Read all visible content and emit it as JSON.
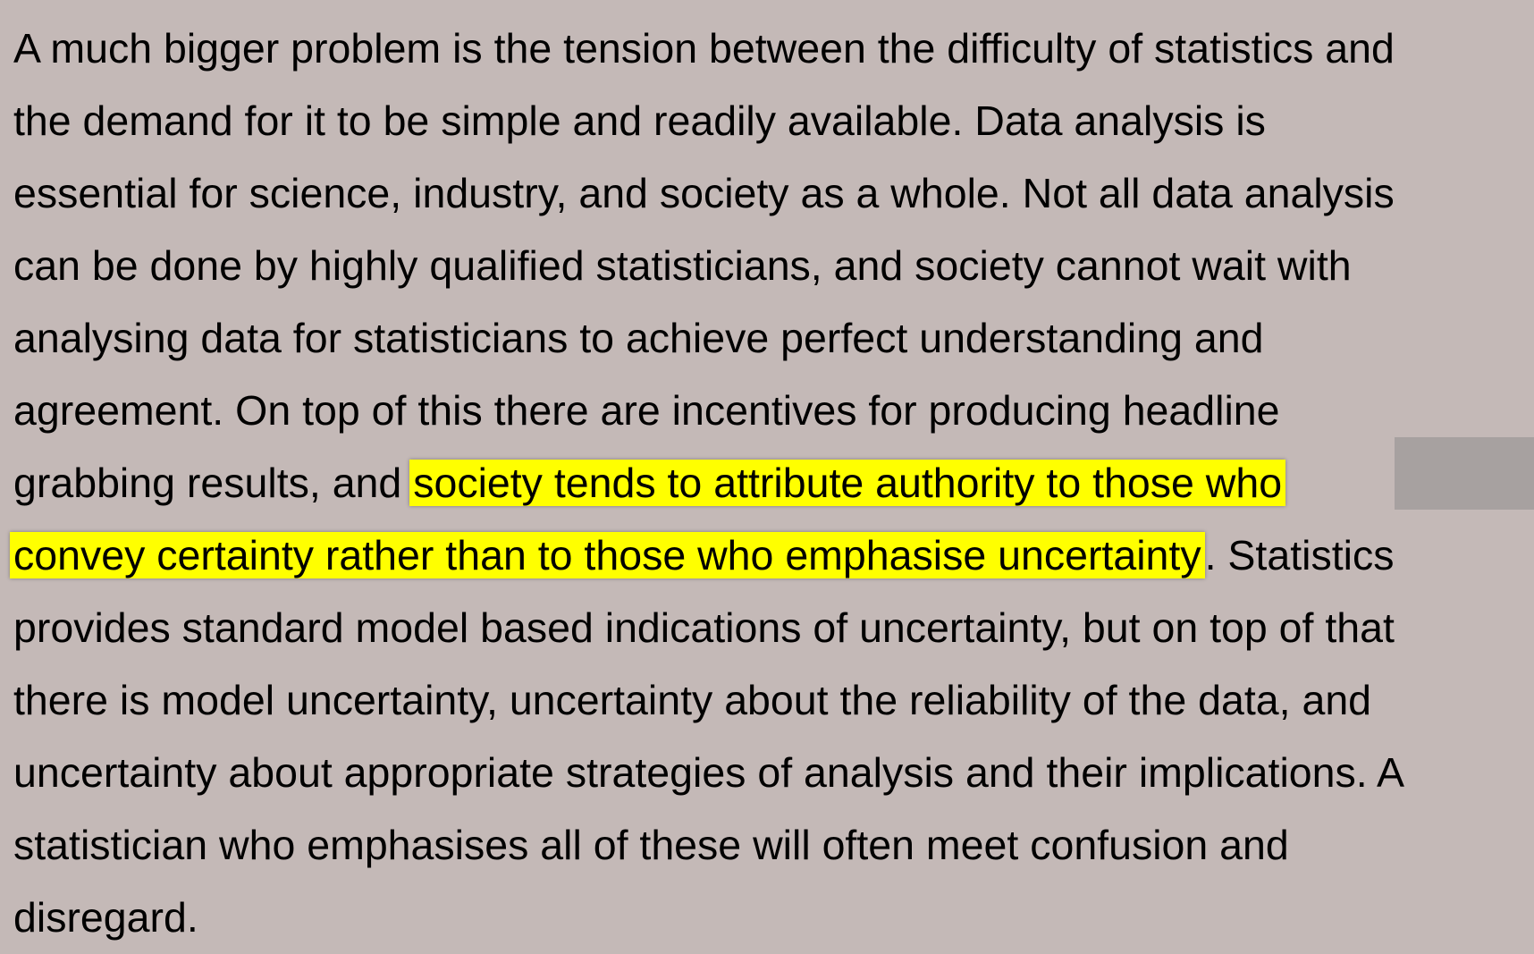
{
  "document": {
    "lines": [
      "A much bigger problem is the tension between the difficulty of statistics and",
      "the demand for it to be simple and readily available. Data analysis is",
      "essential for science, industry, and society as a whole. Not all data analysis",
      "can be done by highly qualified statisticians, and society cannot wait with",
      "analysing data for statisticians to achieve perfect understanding and",
      "agreement. On top of this there are incentives for producing headline"
    ],
    "line7_before": "grabbing results, and ",
    "highlight_part1": "society tends to attribute authority to those who",
    "highlight_part2": "convey certainty rather than to those who emphasise uncertainty",
    "line8_after": ". Statistics",
    "lines_after": [
      "provides standard model based indications of uncertainty, but on top of that",
      "there is model uncertainty, uncertainty about the reliability of the data, and",
      "uncertainty about appropriate strategies of analysis and their implications. A",
      "statistician who emphasises all of these will often meet confusion and",
      "disregard."
    ]
  },
  "colors": {
    "background": "#c4b9b7",
    "highlight": "#ffff00",
    "text": "#000000"
  }
}
